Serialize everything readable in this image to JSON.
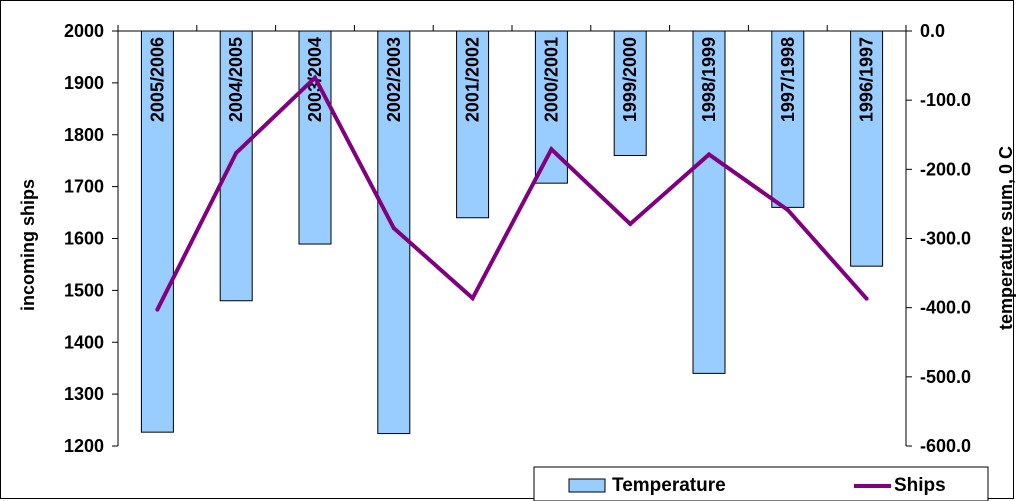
{
  "chart_data": {
    "type": "bar",
    "categories": [
      "2005/2006",
      "2004/2005",
      "2003/2004",
      "2002/2003",
      "2001/2002",
      "2000/2001",
      "1999/2000",
      "1998/1999",
      "1997/1998",
      "1996/1997"
    ],
    "series": [
      {
        "name": "Temperature",
        "type": "bar",
        "axis": "right",
        "values": [
          -580,
          -390,
          -308,
          -582,
          -270,
          -220,
          -180,
          -495,
          -255,
          -340
        ],
        "color": "#99ccff"
      },
      {
        "name": "Ships",
        "type": "line",
        "axis": "left",
        "values": [
          1463,
          1765,
          1910,
          1620,
          1485,
          1772,
          1628,
          1762,
          1655,
          1484
        ],
        "color": "#800080"
      }
    ],
    "y_left": {
      "label": "incoming ships",
      "range": [
        1200,
        2000
      ],
      "ticks": [
        "1200",
        "1300",
        "1400",
        "1500",
        "1600",
        "1700",
        "1800",
        "1900",
        "2000"
      ]
    },
    "y_right": {
      "label": "temperature sum, 0 C",
      "range": [
        -600,
        0
      ],
      "ticks": [
        "0.0",
        "-100.0",
        "-200.0",
        "-300.0",
        "-400.0",
        "-500.0",
        "-600.0"
      ]
    },
    "legend": {
      "position": "bottom-right",
      "items": [
        "Temperature",
        "Ships"
      ]
    },
    "grid": false
  }
}
